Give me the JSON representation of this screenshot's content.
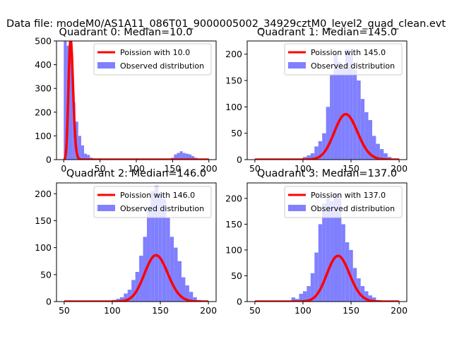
{
  "figure_title": "Data file: modeM0/AS1A11_086T01_9000005002_34929cztM0_level2_quad_clean.evt",
  "colors": {
    "hist": "#8080ff",
    "poisson": "#ff0000",
    "axis": "#000000"
  },
  "chart_data": [
    {
      "type": "bar",
      "title": "Quadrant 0: Median=10.0",
      "legend": {
        "placement": "top-right",
        "line_label": "Poission with 10.0",
        "hist_label": "Observed distribution"
      },
      "xlim": [
        -10,
        210
      ],
      "ylim": [
        0,
        500
      ],
      "xticks": [
        0,
        50,
        100,
        150,
        200
      ],
      "yticks": [
        0,
        100,
        200,
        300,
        400,
        500
      ],
      "bin_width": 4,
      "hist_x": [
        0,
        4,
        8,
        12,
        16,
        20,
        24,
        28,
        32,
        36,
        40,
        44,
        48,
        52,
        56,
        60,
        64,
        68,
        72,
        76,
        80,
        84,
        88,
        92,
        96,
        100,
        104,
        108,
        112,
        116,
        120,
        124,
        128,
        132,
        136,
        140,
        144,
        148,
        152,
        156,
        160,
        164,
        168,
        172,
        176,
        180,
        184,
        188,
        192
      ],
      "hist_y": [
        500,
        480,
        450,
        240,
        160,
        100,
        60,
        25,
        20,
        8,
        5,
        3,
        3,
        2,
        2,
        1,
        1,
        1,
        1,
        1,
        0,
        0,
        0,
        0,
        0,
        0,
        0,
        0,
        0,
        0,
        0,
        0,
        0,
        0,
        0,
        0,
        3,
        8,
        22,
        28,
        35,
        28,
        25,
        22,
        15,
        8,
        3,
        2,
        0
      ],
      "poisson_lambda": 10.0,
      "curve_scale": 4000,
      "curve_x": [
        0,
        200
      ]
    },
    {
      "type": "bar",
      "title": "Quadrant 1: Median=145.0",
      "legend": {
        "placement": "top-right",
        "line_label": "Poission with 145.0",
        "hist_label": "Observed distribution"
      },
      "xlim": [
        42,
        208
      ],
      "ylim": [
        0,
        225
      ],
      "xticks": [
        50,
        100,
        150,
        200
      ],
      "yticks": [
        0,
        50,
        100,
        150,
        200
      ],
      "bin_width": 4,
      "hist_x": [
        100,
        104,
        108,
        112,
        116,
        120,
        124,
        128,
        132,
        136,
        140,
        144,
        148,
        152,
        156,
        160,
        164,
        168,
        172,
        176,
        180,
        184,
        188,
        192
      ],
      "hist_y": [
        5,
        8,
        12,
        25,
        35,
        50,
        100,
        160,
        200,
        185,
        175,
        210,
        200,
        170,
        150,
        115,
        90,
        75,
        45,
        30,
        20,
        12,
        5,
        2
      ],
      "poisson_lambda": 145.0,
      "curve_scale": 2600,
      "curve_x": [
        50,
        200
      ]
    },
    {
      "type": "bar",
      "title": "Quadrant 2: Median=146.0",
      "legend": {
        "placement": "top-right",
        "line_label": "Poission with 146.0",
        "hist_label": "Observed distribution"
      },
      "xlim": [
        42,
        208
      ],
      "ylim": [
        0,
        220
      ],
      "xticks": [
        50,
        100,
        150,
        200
      ],
      "yticks": [
        0,
        50,
        100,
        150,
        200
      ],
      "bin_width": 4,
      "hist_x": [
        60,
        64,
        68,
        72,
        76,
        80,
        84,
        88,
        92,
        96,
        100,
        104,
        108,
        112,
        116,
        120,
        124,
        128,
        132,
        136,
        140,
        144,
        148,
        152,
        156,
        160,
        164,
        168,
        172,
        176,
        180,
        184,
        188,
        192
      ],
      "hist_y": [
        0,
        0,
        0,
        0,
        1,
        2,
        1,
        0,
        1,
        2,
        3,
        5,
        8,
        15,
        22,
        40,
        55,
        85,
        120,
        175,
        205,
        215,
        200,
        190,
        155,
        120,
        100,
        75,
        45,
        30,
        18,
        8,
        3,
        2
      ],
      "poisson_lambda": 146.0,
      "curve_scale": 2600,
      "curve_x": [
        50,
        200
      ]
    },
    {
      "type": "bar",
      "title": "Quadrant 3: Median=137.0",
      "legend": {
        "placement": "top-right",
        "line_label": "Poission with 137.0",
        "hist_label": "Observed distribution"
      },
      "xlim": [
        42,
        208
      ],
      "ylim": [
        0,
        230
      ],
      "xticks": [
        50,
        100,
        150,
        200
      ],
      "yticks": [
        0,
        50,
        100,
        150,
        200
      ],
      "bin_width": 4,
      "hist_x": [
        84,
        88,
        92,
        96,
        100,
        104,
        108,
        112,
        116,
        120,
        124,
        128,
        132,
        136,
        140,
        144,
        148,
        152,
        156,
        160,
        164,
        168,
        172,
        176,
        180
      ],
      "hist_y": [
        2,
        8,
        5,
        15,
        20,
        30,
        55,
        95,
        150,
        190,
        200,
        195,
        210,
        200,
        150,
        115,
        100,
        65,
        45,
        30,
        20,
        12,
        8,
        3,
        1
      ],
      "poisson_lambda": 137.0,
      "curve_scale": 2600,
      "curve_x": [
        50,
        200
      ]
    }
  ]
}
